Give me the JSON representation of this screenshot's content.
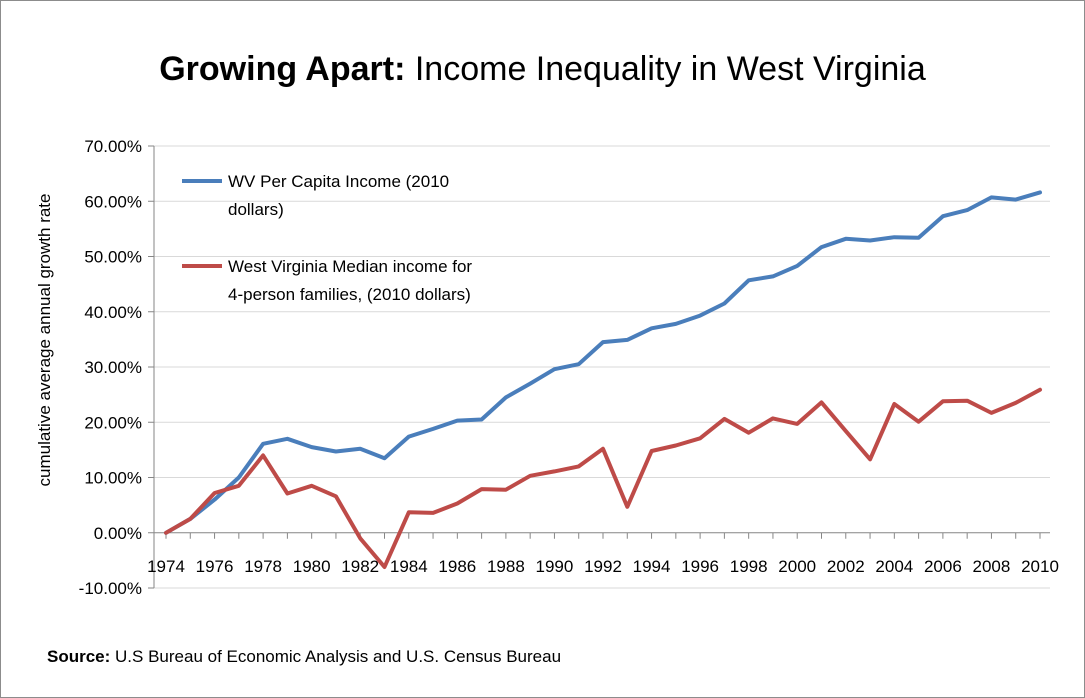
{
  "chart_data": {
    "type": "line",
    "title_bold": "Growing Apart:",
    "title_rest": " Income Inequality in West Virginia",
    "ylabel": "cumulative average annual growth rate",
    "xlabel": "",
    "ylim": [
      -0.1,
      0.7
    ],
    "yticks": [
      -0.1,
      0.0,
      0.1,
      0.2,
      0.3,
      0.4,
      0.5,
      0.6,
      0.7
    ],
    "ytick_labels": [
      "-10.00%",
      "0.00%",
      "10.00%",
      "20.00%",
      "30.00%",
      "40.00%",
      "50.00%",
      "60.00%",
      "70.00%"
    ],
    "x": [
      1974,
      1975,
      1976,
      1977,
      1978,
      1979,
      1980,
      1981,
      1982,
      1983,
      1984,
      1985,
      1986,
      1987,
      1988,
      1989,
      1990,
      1991,
      1992,
      1993,
      1994,
      1995,
      1996,
      1997,
      1998,
      1999,
      2000,
      2001,
      2002,
      2003,
      2004,
      2005,
      2006,
      2007,
      2008,
      2009,
      2010
    ],
    "xtick_labels": [
      "1974",
      "1976",
      "1978",
      "1980",
      "1982",
      "1984",
      "1986",
      "1988",
      "1990",
      "1992",
      "1994",
      "1996",
      "1998",
      "2000",
      "2002",
      "2004",
      "2006",
      "2008",
      "2010"
    ],
    "xtick_years": [
      1974,
      1976,
      1978,
      1980,
      1982,
      1984,
      1986,
      1988,
      1990,
      1992,
      1994,
      1996,
      1998,
      2000,
      2002,
      2004,
      2006,
      2008,
      2010
    ],
    "grid": "horizontal",
    "legend_position": "top-left",
    "series": [
      {
        "name_line1": "WV Per Capita Income (2010",
        "name_line2": "dollars)",
        "color": "#4a7ebb",
        "values": [
          0.0,
          0.025,
          0.06,
          0.1,
          0.161,
          0.17,
          0.155,
          0.147,
          0.152,
          0.135,
          0.174,
          0.188,
          0.203,
          0.205,
          0.245,
          0.27,
          0.296,
          0.305,
          0.345,
          0.349,
          0.37,
          0.378,
          0.393,
          0.415,
          0.457,
          0.464,
          0.483,
          0.517,
          0.532,
          0.529,
          0.535,
          0.534,
          0.573,
          0.584,
          0.607,
          0.603,
          0.616
        ]
      },
      {
        "name_line1": "West Virginia Median income for",
        "name_line2": "4-person families, (2010 dollars)",
        "color": "#be4b48",
        "values": [
          0.0,
          0.025,
          0.072,
          0.085,
          0.14,
          0.071,
          0.085,
          0.066,
          -0.01,
          -0.062,
          0.037,
          0.036,
          0.053,
          0.079,
          0.078,
          0.103,
          0.111,
          0.12,
          0.152,
          0.047,
          0.148,
          0.158,
          0.171,
          0.206,
          0.181,
          0.207,
          0.197,
          0.236,
          0.184,
          0.133,
          0.233,
          0.201,
          0.238,
          0.239,
          0.217,
          0.235,
          0.259
        ]
      }
    ]
  },
  "source": {
    "label": "Source:",
    "text": " U.S Bureau of Economic Analysis and U.S. Census Bureau"
  }
}
